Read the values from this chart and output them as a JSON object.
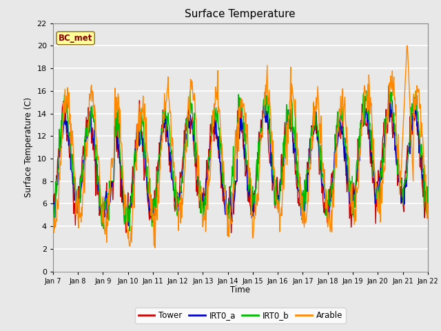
{
  "title": "Surface Temperature",
  "ylabel": "Surface Temperature (C)",
  "xlabel": "Time",
  "ylim": [
    0,
    22
  ],
  "background_color": "#e8e8e8",
  "plot_bg_color": "#e8e8e8",
  "grid_color": "#ffffff",
  "annotation_text": "BC_met",
  "annotation_box_color": "#ffff99",
  "annotation_text_color": "#8b0000",
  "annotation_border_color": "#8b6914",
  "tick_labels": [
    "Jan 7",
    "Jan 8",
    "Jan 9",
    "Jan 10",
    "Jan 11",
    "Jan 12",
    "Jan 13",
    "Jan 14",
    "Jan 15",
    "Jan 16",
    "Jan 17",
    "Jan 18",
    "Jan 19",
    "Jan 20",
    "Jan 21",
    "Jan 22"
  ],
  "yticks": [
    0,
    2,
    4,
    6,
    8,
    10,
    12,
    14,
    16,
    18,
    20,
    22
  ],
  "series_colors": {
    "Tower": "#cc0000",
    "IRT0_a": "#0000cc",
    "IRT0_b": "#00bb00",
    "Arable": "#ff8800"
  },
  "legend_entries": [
    "Tower",
    "IRT0_a",
    "IRT0_b",
    "Arable"
  ],
  "line_width": 1.0
}
